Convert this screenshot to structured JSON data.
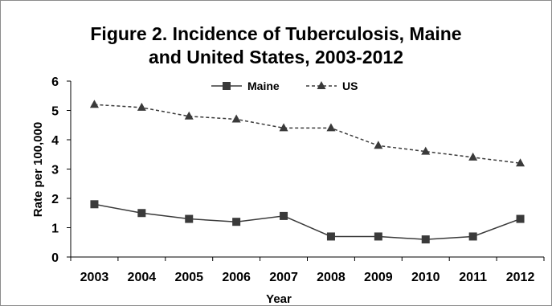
{
  "chart_data": {
    "type": "line",
    "title_line1": "Figure 2. Incidence of Tuberculosis, Maine",
    "title_line2": "and United States, 2003-2012",
    "xlabel": "Year",
    "ylabel": "Rate per 100,000",
    "categories": [
      "2003",
      "2004",
      "2005",
      "2006",
      "2007",
      "2008",
      "2009",
      "2010",
      "2011",
      "2012"
    ],
    "ylim": [
      0,
      6
    ],
    "yticks": [
      "0",
      "1",
      "2",
      "3",
      "4",
      "5",
      "6"
    ],
    "grid": false,
    "legend_position": "top",
    "series": [
      {
        "name": "Maine",
        "values": [
          1.8,
          1.5,
          1.3,
          1.2,
          1.4,
          0.7,
          0.7,
          0.6,
          0.7,
          1.3
        ],
        "marker": "square",
        "line_style": "solid",
        "color": "#3a3a3a"
      },
      {
        "name": "US",
        "values": [
          5.2,
          5.1,
          4.8,
          4.7,
          4.4,
          4.4,
          3.8,
          3.6,
          3.4,
          3.2
        ],
        "marker": "triangle",
        "line_style": "dashed",
        "color": "#3a3a3a"
      }
    ]
  }
}
